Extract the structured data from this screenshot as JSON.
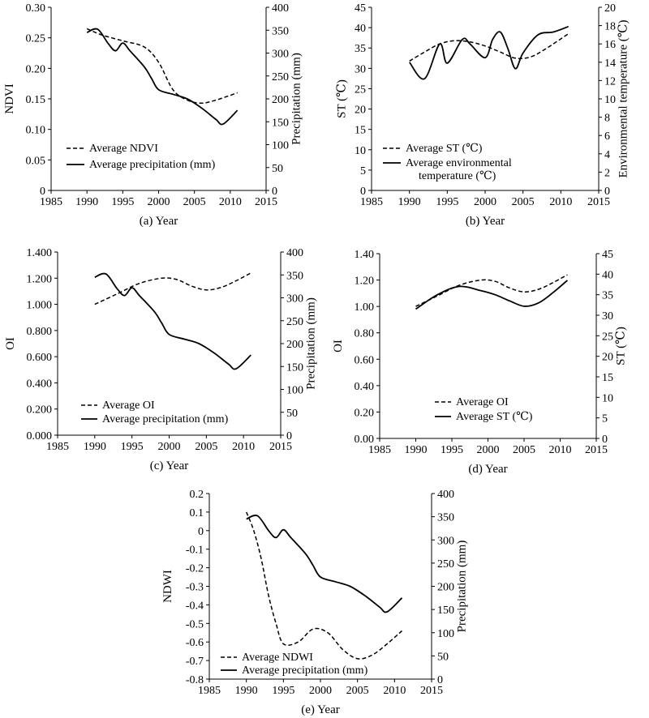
{
  "chart_data": [
    {
      "type": "line",
      "panel_label": "(a) Year",
      "x": [
        1990,
        1992,
        1995,
        1998,
        2000,
        2003,
        2005,
        2007,
        2009,
        2011
      ],
      "xlim": [
        1985,
        2015
      ],
      "xticks": [
        "1985",
        "1990",
        "1995",
        "2000",
        "2005",
        "2010",
        "2015"
      ],
      "ylabel": "NDVI",
      "ylim": [
        0,
        0.3
      ],
      "yticks": [
        "0",
        "0.05",
        "0.10",
        "0.15",
        "0.20",
        "0.25",
        "0.30"
      ],
      "y2label": "Precipitation (mm)",
      "y2lim": [
        0,
        400
      ],
      "y2ticks": [
        "0",
        "50",
        "100",
        "150",
        "200",
        "250",
        "300",
        "350",
        "400"
      ],
      "series": [
        {
          "name": "Average NDVI",
          "axis": "left",
          "style": "dashed",
          "x": [
            1990,
            1992,
            1995,
            1998,
            2000,
            2002,
            2004,
            2006,
            2008,
            2011
          ],
          "y": [
            0.265,
            0.255,
            0.245,
            0.235,
            0.21,
            0.165,
            0.148,
            0.143,
            0.148,
            0.16
          ]
        },
        {
          "name": "Average precipitation (mm)",
          "axis": "right",
          "style": "solid",
          "x": [
            1990,
            1991.5,
            1993,
            1994,
            1995,
            1996,
            1998,
            1999,
            2000,
            2002,
            2004,
            2006,
            2008,
            2009,
            2011
          ],
          "y": [
            345,
            352,
            320,
            305,
            322,
            305,
            270,
            245,
            220,
            210,
            200,
            180,
            155,
            145,
            175
          ]
        }
      ],
      "legend_position": "bottom-left"
    },
    {
      "type": "line",
      "panel_label": "(b) Year",
      "xlim": [
        1985,
        2015
      ],
      "xticks": [
        "1985",
        "1990",
        "1995",
        "2000",
        "2005",
        "2010",
        "2015"
      ],
      "ylabel": "ST (℃)",
      "ylim": [
        0,
        45
      ],
      "yticks": [
        "0",
        "5",
        "10",
        "15",
        "20",
        "25",
        "30",
        "35",
        "40",
        "45"
      ],
      "y2label": "Environmental temperature (℃)",
      "y2lim": [
        0,
        20
      ],
      "y2ticks": [
        "0",
        "2",
        "4",
        "6",
        "8",
        "10",
        "12",
        "14",
        "16",
        "18",
        "20"
      ],
      "series": [
        {
          "name": "Average ST (℃)",
          "axis": "left",
          "style": "dashed",
          "x": [
            1990,
            1992,
            1994,
            1996,
            1998,
            2000,
            2002,
            2004,
            2006,
            2008,
            2011
          ],
          "y": [
            31.8,
            34,
            36,
            36.8,
            36.5,
            35.5,
            34,
            32.5,
            32.8,
            34.8,
            38.5
          ]
        },
        {
          "name": "Average environmental temperature (℃)",
          "axis": "right",
          "style": "solid",
          "x": [
            1990,
            1992,
            1994,
            1995,
            1997,
            1998,
            2000,
            2001,
            2002,
            2003,
            2004,
            2005,
            2007,
            2009,
            2011
          ],
          "y": [
            14,
            12.2,
            16,
            13.9,
            16.5,
            16,
            14.5,
            16.5,
            17.3,
            15.5,
            13.3,
            15,
            17,
            17.3,
            17.9
          ]
        }
      ],
      "legend_position": "bottom-left"
    },
    {
      "type": "line",
      "panel_label": "(c) Year",
      "xlim": [
        1985,
        2015
      ],
      "xticks": [
        "1985",
        "1990",
        "1995",
        "2000",
        "2005",
        "2010",
        "2015"
      ],
      "ylabel": "OI",
      "ylim": [
        0,
        1.4
      ],
      "yticks": [
        "0.000",
        "0.200",
        "0.400",
        "0.600",
        "0.800",
        "1.000",
        "1.200",
        "1.400"
      ],
      "y2label": "Precipitation (mm)",
      "y2lim": [
        0,
        400
      ],
      "y2ticks": [
        "0",
        "50",
        "100",
        "150",
        "200",
        "250",
        "300",
        "350",
        "400"
      ],
      "series": [
        {
          "name": "Average OI",
          "axis": "left",
          "style": "dashed",
          "x": [
            1990,
            1993,
            1996,
            1999,
            2001,
            2003,
            2005,
            2007,
            2009,
            2011
          ],
          "y": [
            1.0,
            1.08,
            1.16,
            1.2,
            1.19,
            1.14,
            1.11,
            1.13,
            1.18,
            1.24
          ]
        },
        {
          "name": "Average precipitation (mm)",
          "axis": "right",
          "style": "solid",
          "x": [
            1990,
            1991.5,
            1993,
            1994,
            1995,
            1996,
            1998,
            1999,
            2000,
            2002,
            2004,
            2006,
            2008,
            2009,
            2011
          ],
          "y": [
            345,
            352,
            320,
            305,
            322,
            305,
            270,
            245,
            220,
            210,
            200,
            180,
            155,
            145,
            175
          ]
        }
      ],
      "legend_position": "bottom-left"
    },
    {
      "type": "line",
      "panel_label": "(d) Year",
      "xlim": [
        1985,
        2015
      ],
      "xticks": [
        "1985",
        "1990",
        "1995",
        "2000",
        "2005",
        "2010",
        "2015"
      ],
      "ylabel": "OI",
      "ylim": [
        0,
        1.4
      ],
      "yticks": [
        "0.00",
        "0.20",
        "0.40",
        "0.60",
        "0.80",
        "1.00",
        "1.20",
        "1.40"
      ],
      "y2label": "ST (℃)",
      "y2lim": [
        0,
        45
      ],
      "y2ticks": [
        "0",
        "5",
        "10",
        "15",
        "20",
        "25",
        "30",
        "35",
        "40",
        "45"
      ],
      "series": [
        {
          "name": "Average OI",
          "axis": "left",
          "style": "dashed",
          "x": [
            1990,
            1993,
            1996,
            1999,
            2001,
            2003,
            2005,
            2007,
            2009,
            2011
          ],
          "y": [
            1.0,
            1.08,
            1.16,
            1.2,
            1.19,
            1.14,
            1.11,
            1.13,
            1.18,
            1.24
          ]
        },
        {
          "name": "Average ST (℃)",
          "axis": "right",
          "style": "solid",
          "x": [
            1990,
            1993,
            1996,
            1999,
            2001,
            2003,
            2005,
            2007,
            2009,
            2011
          ],
          "y": [
            31.5,
            35,
            37,
            36,
            35,
            33.5,
            32.2,
            33,
            35.5,
            38.5
          ]
        }
      ],
      "legend_position": "bottom-center"
    },
    {
      "type": "line",
      "panel_label": "(e) Year",
      "xlim": [
        1985,
        2015
      ],
      "xticks": [
        "1985",
        "1990",
        "1995",
        "2000",
        "2005",
        "2010",
        "2015"
      ],
      "ylabel": "NDWI",
      "ylim": [
        -0.8,
        0.2
      ],
      "yticks": [
        "-0.8",
        "-0.7",
        "-0.6",
        "-0.5",
        "-0.4",
        "-0.3",
        "-0.2",
        "-0.1",
        "0",
        "0.1",
        "0.2"
      ],
      "y2label": "Precipitation (mm)",
      "y2lim": [
        0,
        400
      ],
      "y2ticks": [
        "0",
        "50",
        "100",
        "150",
        "200",
        "250",
        "300",
        "350",
        "400"
      ],
      "series": [
        {
          "name": "Average NDWI",
          "axis": "left",
          "style": "dashed",
          "x": [
            1990,
            1991,
            1992,
            1993,
            1994,
            1995,
            1997,
            1999,
            2001,
            2003,
            2005,
            2007,
            2009,
            2011
          ],
          "y": [
            0.1,
            0.0,
            -0.15,
            -0.35,
            -0.5,
            -0.61,
            -0.6,
            -0.53,
            -0.55,
            -0.64,
            -0.69,
            -0.67,
            -0.61,
            -0.54
          ]
        },
        {
          "name": "Average precipitation (mm)",
          "axis": "right",
          "style": "solid",
          "x": [
            1990,
            1991.5,
            1993,
            1994,
            1995,
            1996,
            1998,
            1999,
            2000,
            2002,
            2004,
            2006,
            2008,
            2009,
            2011
          ],
          "y": [
            345,
            352,
            320,
            305,
            322,
            305,
            270,
            245,
            220,
            210,
            200,
            180,
            155,
            145,
            175
          ]
        }
      ],
      "legend_position": "bottom-left"
    }
  ]
}
